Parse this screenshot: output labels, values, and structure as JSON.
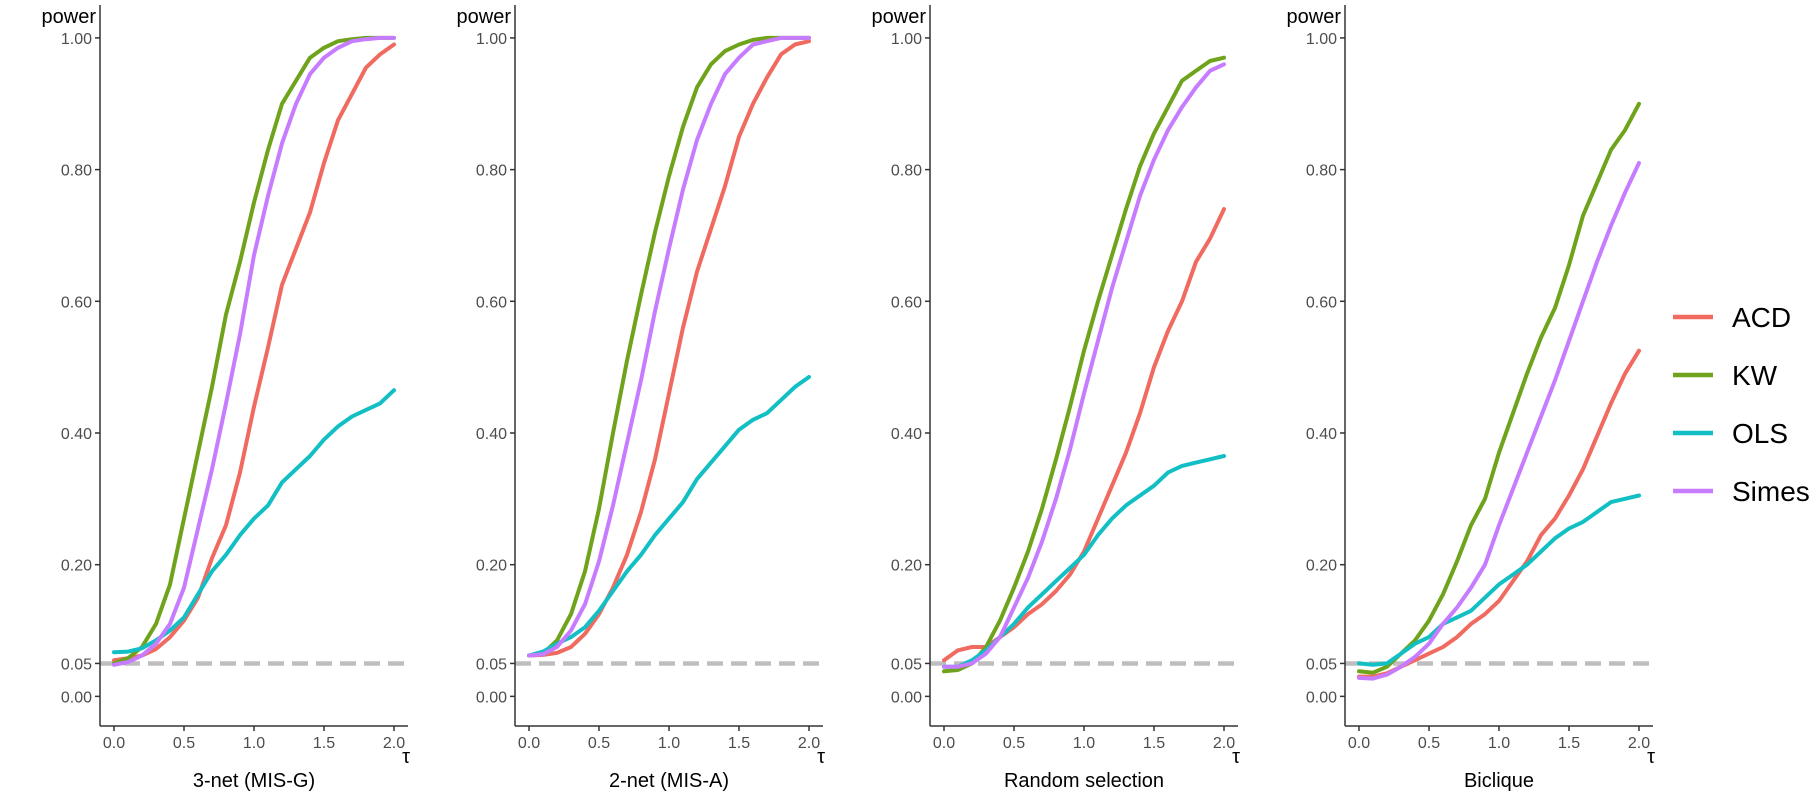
{
  "colors": {
    "ACD": "#F06A60",
    "KW": "#6FA31B",
    "OLS": "#11BFC4",
    "Simes": "#C77CFF",
    "reference_line": "#BEBEBE",
    "axis": "#333333",
    "tick_label": "#4D4D4D"
  },
  "legend": {
    "placement": "right",
    "entries": [
      "ACD",
      "KW",
      "OLS",
      "Simes"
    ]
  },
  "chart_data": [
    {
      "type": "line",
      "title": "3-net (MIS-G)",
      "xlabel": "τ",
      "ylabel": "power",
      "xlim": [
        -0.1,
        2.1
      ],
      "ylim": [
        -0.045,
        1.05
      ],
      "xticks": [
        "0.0",
        "0.5",
        "1.0",
        "1.5",
        "2.0"
      ],
      "xtick_values": [
        0,
        0.5,
        1,
        1.5,
        2
      ],
      "yticks": [
        "0.00",
        "0.05",
        "0.20",
        "0.40",
        "0.60",
        "0.80",
        "1.00"
      ],
      "ytick_values": [
        0,
        0.05,
        0.2,
        0.4,
        0.6,
        0.8,
        1
      ],
      "reference_line": {
        "y": 0.05,
        "style": "dashed"
      },
      "x": [
        0,
        0.1,
        0.2,
        0.3,
        0.4,
        0.5,
        0.6,
        0.7,
        0.8,
        0.9,
        1.0,
        1.1,
        1.2,
        1.3,
        1.4,
        1.5,
        1.6,
        1.7,
        1.8,
        1.9,
        2.0
      ],
      "series": [
        {
          "name": "ACD",
          "values": [
            0.055,
            0.058,
            0.062,
            0.072,
            0.09,
            0.115,
            0.15,
            0.21,
            0.26,
            0.34,
            0.44,
            0.53,
            0.625,
            0.68,
            0.735,
            0.81,
            0.875,
            0.915,
            0.955,
            0.975,
            0.99
          ]
        },
        {
          "name": "KW",
          "values": [
            0.05,
            0.058,
            0.075,
            0.11,
            0.17,
            0.27,
            0.37,
            0.47,
            0.58,
            0.66,
            0.75,
            0.83,
            0.9,
            0.935,
            0.97,
            0.985,
            0.995,
            0.998,
            1.0,
            1.0,
            1.0
          ]
        },
        {
          "name": "OLS",
          "values": [
            0.067,
            0.068,
            0.073,
            0.085,
            0.1,
            0.12,
            0.155,
            0.19,
            0.215,
            0.245,
            0.27,
            0.29,
            0.325,
            0.345,
            0.365,
            0.39,
            0.41,
            0.425,
            0.435,
            0.445,
            0.465
          ]
        },
        {
          "name": "Simes",
          "values": [
            0.048,
            0.052,
            0.062,
            0.08,
            0.11,
            0.165,
            0.255,
            0.345,
            0.445,
            0.55,
            0.67,
            0.76,
            0.84,
            0.9,
            0.945,
            0.97,
            0.985,
            0.995,
            0.998,
            1.0,
            1.0
          ]
        }
      ]
    },
    {
      "type": "line",
      "title": "2-net (MIS-A)",
      "xlabel": "τ",
      "ylabel": "power",
      "xlim": [
        -0.1,
        2.1
      ],
      "ylim": [
        -0.045,
        1.05
      ],
      "xticks": [
        "0.0",
        "0.5",
        "1.0",
        "1.5",
        "2.0"
      ],
      "xtick_values": [
        0,
        0.5,
        1,
        1.5,
        2
      ],
      "yticks": [
        "0.00",
        "0.05",
        "0.20",
        "0.40",
        "0.60",
        "0.80",
        "1.00"
      ],
      "ytick_values": [
        0,
        0.05,
        0.2,
        0.4,
        0.6,
        0.8,
        1
      ],
      "reference_line": {
        "y": 0.05,
        "style": "dashed"
      },
      "x": [
        0,
        0.1,
        0.2,
        0.3,
        0.4,
        0.5,
        0.6,
        0.7,
        0.8,
        0.9,
        1.0,
        1.1,
        1.2,
        1.3,
        1.4,
        1.5,
        1.6,
        1.7,
        1.8,
        1.9,
        2.0
      ],
      "series": [
        {
          "name": "ACD",
          "values": [
            0.062,
            0.063,
            0.066,
            0.075,
            0.095,
            0.125,
            0.165,
            0.215,
            0.28,
            0.36,
            0.46,
            0.56,
            0.645,
            0.71,
            0.775,
            0.85,
            0.9,
            0.94,
            0.975,
            0.99,
            0.995
          ]
        },
        {
          "name": "KW",
          "values": [
            0.062,
            0.065,
            0.085,
            0.125,
            0.19,
            0.285,
            0.4,
            0.51,
            0.61,
            0.705,
            0.79,
            0.865,
            0.925,
            0.96,
            0.98,
            0.99,
            0.997,
            1.0,
            1.0,
            1.0,
            1.0
          ]
        },
        {
          "name": "OLS",
          "values": [
            0.062,
            0.068,
            0.08,
            0.09,
            0.105,
            0.13,
            0.16,
            0.19,
            0.215,
            0.245,
            0.27,
            0.295,
            0.33,
            0.355,
            0.38,
            0.405,
            0.42,
            0.43,
            0.45,
            0.47,
            0.485
          ]
        },
        {
          "name": "Simes",
          "values": [
            0.062,
            0.064,
            0.075,
            0.1,
            0.14,
            0.205,
            0.29,
            0.385,
            0.48,
            0.585,
            0.68,
            0.77,
            0.845,
            0.9,
            0.945,
            0.97,
            0.99,
            0.995,
            1.0,
            1.0,
            1.0
          ]
        }
      ]
    },
    {
      "type": "line",
      "title": "Random selection",
      "xlabel": "τ",
      "ylabel": "power",
      "xlim": [
        -0.1,
        2.1
      ],
      "ylim": [
        -0.045,
        1.05
      ],
      "xticks": [
        "0.0",
        "0.5",
        "1.0",
        "1.5",
        "2.0"
      ],
      "xtick_values": [
        0,
        0.5,
        1,
        1.5,
        2
      ],
      "yticks": [
        "0.00",
        "0.05",
        "0.20",
        "0.40",
        "0.60",
        "0.80",
        "1.00"
      ],
      "ytick_values": [
        0,
        0.05,
        0.2,
        0.4,
        0.6,
        0.8,
        1
      ],
      "reference_line": {
        "y": 0.05,
        "style": "dashed"
      },
      "x": [
        0,
        0.1,
        0.2,
        0.3,
        0.4,
        0.5,
        0.6,
        0.7,
        0.8,
        0.9,
        1.0,
        1.1,
        1.2,
        1.3,
        1.4,
        1.5,
        1.6,
        1.7,
        1.8,
        1.9,
        2.0
      ],
      "series": [
        {
          "name": "ACD",
          "values": [
            0.055,
            0.07,
            0.075,
            0.075,
            0.09,
            0.105,
            0.125,
            0.14,
            0.16,
            0.185,
            0.22,
            0.27,
            0.32,
            0.37,
            0.43,
            0.5,
            0.555,
            0.6,
            0.66,
            0.695,
            0.74
          ]
        },
        {
          "name": "KW",
          "values": [
            0.038,
            0.04,
            0.05,
            0.075,
            0.115,
            0.165,
            0.22,
            0.285,
            0.36,
            0.44,
            0.525,
            0.6,
            0.67,
            0.74,
            0.805,
            0.855,
            0.895,
            0.935,
            0.95,
            0.965,
            0.97
          ]
        },
        {
          "name": "OLS",
          "values": [
            0.045,
            0.045,
            0.055,
            0.07,
            0.09,
            0.11,
            0.135,
            0.155,
            0.175,
            0.195,
            0.215,
            0.245,
            0.27,
            0.29,
            0.305,
            0.32,
            0.34,
            0.35,
            0.355,
            0.36,
            0.365
          ]
        },
        {
          "name": "Simes",
          "values": [
            0.045,
            0.045,
            0.05,
            0.065,
            0.09,
            0.135,
            0.18,
            0.235,
            0.3,
            0.375,
            0.46,
            0.54,
            0.62,
            0.69,
            0.76,
            0.815,
            0.86,
            0.895,
            0.925,
            0.95,
            0.96
          ]
        }
      ]
    },
    {
      "type": "line",
      "title": "Biclique",
      "xlabel": "τ",
      "ylabel": "power",
      "xlim": [
        -0.1,
        2.1
      ],
      "ylim": [
        -0.045,
        1.05
      ],
      "xticks": [
        "0.0",
        "0.5",
        "1.0",
        "1.5",
        "2.0"
      ],
      "xtick_values": [
        0,
        0.5,
        1,
        1.5,
        2
      ],
      "yticks": [
        "0.00",
        "0.05",
        "0.20",
        "0.40",
        "0.60",
        "0.80",
        "1.00"
      ],
      "ytick_values": [
        0,
        0.05,
        0.2,
        0.4,
        0.6,
        0.8,
        1
      ],
      "reference_line": {
        "y": 0.05,
        "style": "dashed"
      },
      "x": [
        0,
        0.1,
        0.2,
        0.3,
        0.4,
        0.5,
        0.6,
        0.7,
        0.8,
        0.9,
        1.0,
        1.1,
        1.2,
        1.3,
        1.4,
        1.5,
        1.6,
        1.7,
        1.8,
        1.9,
        2.0
      ],
      "series": [
        {
          "name": "ACD",
          "values": [
            0.03,
            0.03,
            0.035,
            0.045,
            0.055,
            0.065,
            0.075,
            0.09,
            0.11,
            0.125,
            0.145,
            0.175,
            0.205,
            0.245,
            0.27,
            0.305,
            0.345,
            0.395,
            0.445,
            0.49,
            0.525
          ]
        },
        {
          "name": "KW",
          "values": [
            0.038,
            0.036,
            0.045,
            0.065,
            0.085,
            0.115,
            0.155,
            0.205,
            0.26,
            0.3,
            0.37,
            0.43,
            0.49,
            0.545,
            0.59,
            0.655,
            0.73,
            0.78,
            0.83,
            0.86,
            0.9
          ]
        },
        {
          "name": "OLS",
          "values": [
            0.05,
            0.048,
            0.05,
            0.065,
            0.08,
            0.09,
            0.11,
            0.12,
            0.13,
            0.15,
            0.17,
            0.185,
            0.2,
            0.22,
            0.24,
            0.255,
            0.265,
            0.28,
            0.295,
            0.3,
            0.305
          ]
        },
        {
          "name": "Simes",
          "values": [
            0.028,
            0.027,
            0.033,
            0.045,
            0.06,
            0.08,
            0.11,
            0.135,
            0.165,
            0.2,
            0.26,
            0.315,
            0.37,
            0.425,
            0.48,
            0.54,
            0.6,
            0.66,
            0.715,
            0.765,
            0.81
          ]
        }
      ]
    }
  ]
}
